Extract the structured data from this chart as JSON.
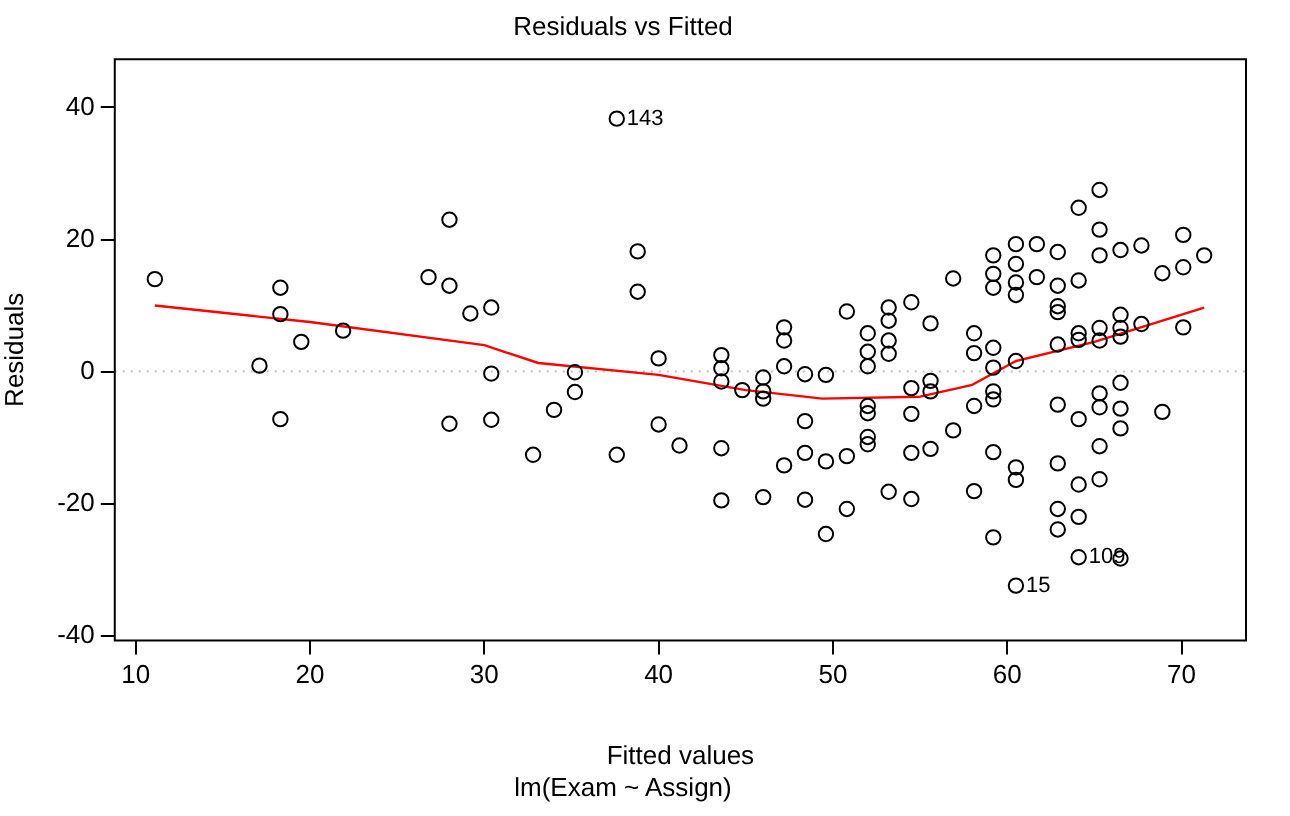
{
  "chart_data": {
    "type": "scatter",
    "title": "Residuals vs Fitted",
    "subtitle": "lm(Exam ~ Assign)",
    "xlabel": "Fitted values",
    "ylabel": "Residuals",
    "xlim": [
      8.8,
      73.7
    ],
    "xticks": [
      10,
      20,
      30,
      40,
      50,
      60,
      70
    ],
    "ylim": [
      -40.7,
      47.3
    ],
    "yticks": [
      -40,
      -20,
      0,
      20,
      40
    ],
    "grid": false,
    "legend": false,
    "marker": "circle",
    "series": [
      {
        "color": "#000000",
        "x": [
          11.1,
          17.1,
          18.3,
          18.3,
          18.3,
          19.5,
          21.9,
          26.8,
          28.0,
          28.0,
          28.0,
          29.2,
          30.4,
          30.4,
          30.4,
          32.8,
          34.0,
          35.2,
          35.2,
          37.6,
          37.6,
          38.8,
          38.8,
          40.0,
          40.0,
          41.2,
          43.6,
          43.6,
          43.6,
          43.6,
          43.6,
          44.8,
          46.0,
          46.0,
          46.0,
          46.0,
          47.2,
          47.2,
          47.2,
          47.2,
          48.4,
          48.4,
          48.4,
          48.4,
          49.6,
          49.6,
          49.6,
          50.8,
          50.8,
          50.8,
          52.0,
          52.0,
          52.0,
          52.0,
          52.0,
          52.0,
          52.0,
          53.2,
          53.2,
          53.2,
          53.2,
          53.2,
          54.5,
          54.5,
          54.5,
          54.5,
          54.5,
          55.6,
          55.6,
          55.6,
          55.6,
          56.9,
          56.9,
          58.1,
          58.1,
          58.1,
          58.1,
          59.2,
          59.2,
          59.2,
          59.2,
          59.2,
          59.2,
          59.2,
          59.2,
          59.2,
          60.5,
          60.5,
          60.5,
          60.5,
          60.5,
          60.5,
          60.5,
          60.5,
          61.7,
          61.7,
          62.9,
          62.9,
          62.9,
          62.9,
          62.9,
          62.9,
          62.9,
          62.9,
          62.9,
          64.1,
          64.1,
          64.1,
          64.1,
          64.1,
          64.1,
          64.1,
          64.1,
          65.3,
          65.3,
          65.3,
          65.3,
          65.3,
          65.3,
          65.3,
          65.3,
          65.3,
          66.5,
          66.5,
          66.5,
          66.5,
          66.5,
          66.5,
          66.5,
          66.5,
          67.7,
          67.7,
          68.9,
          68.9,
          70.1,
          70.1,
          70.1,
          71.3
        ],
        "values": [
          14.0,
          0.9,
          12.7,
          8.7,
          -7.2,
          4.5,
          6.2,
          14.3,
          23.0,
          13.0,
          -7.9,
          8.8,
          9.7,
          -0.3,
          -7.3,
          -12.6,
          -5.8,
          -0.1,
          -3.1,
          38.3,
          -12.6,
          18.2,
          12.1,
          2.0,
          -8.0,
          -11.2,
          2.5,
          0.5,
          -1.5,
          -11.6,
          -19.5,
          -2.8,
          -0.9,
          -3.0,
          -4.1,
          -19.0,
          6.7,
          4.7,
          0.8,
          -14.2,
          -0.4,
          -7.5,
          -12.3,
          -19.4,
          -0.5,
          -13.6,
          -24.6,
          9.1,
          -12.8,
          -20.8,
          5.8,
          3.0,
          0.8,
          -5.2,
          -6.3,
          -9.9,
          -11.0,
          9.7,
          7.7,
          4.7,
          2.7,
          -18.2,
          10.5,
          -2.5,
          -6.4,
          -12.3,
          -19.3,
          7.3,
          -1.4,
          -3.0,
          -11.7,
          14.1,
          -8.9,
          5.8,
          2.8,
          -5.2,
          -18.1,
          17.6,
          14.8,
          12.7,
          3.6,
          0.6,
          -3.0,
          -4.2,
          -12.2,
          -25.1,
          19.3,
          16.3,
          13.5,
          11.6,
          1.6,
          -14.5,
          -16.4,
          -32.4,
          19.3,
          14.3,
          18.1,
          13.0,
          9.9,
          9.0,
          4.1,
          -5.0,
          -13.9,
          -20.8,
          -23.9,
          24.8,
          13.8,
          5.8,
          4.8,
          -7.2,
          -17.1,
          -22.0,
          -28.1,
          27.5,
          21.5,
          17.6,
          6.6,
          4.7,
          -3.3,
          -5.4,
          -11.3,
          -16.3,
          18.4,
          8.6,
          6.6,
          5.3,
          -1.7,
          -5.6,
          -8.6,
          -28.3,
          19.1,
          7.2,
          14.9,
          -6.1,
          20.7,
          15.8,
          6.7,
          17.6
        ]
      },
      {
        "type": "line",
        "color": "#ff0000",
        "marker": "none",
        "x": [
          11.1,
          20,
          30,
          33.1,
          40,
          45,
          49.4,
          55,
          58,
          60.5,
          65,
          71.3
        ],
        "values": [
          10.0,
          7.5,
          4.0,
          1.3,
          -0.5,
          -2.8,
          -4.1,
          -3.8,
          -2.0,
          1.6,
          4.5,
          9.7
        ]
      }
    ],
    "ref_lines": [
      {
        "axis": "y",
        "value": 0,
        "color": "#bebebe",
        "line_style": "dotted"
      }
    ],
    "annotations": [
      {
        "text": "143",
        "x": 37.6,
        "y": 38.3
      },
      {
        "text": "15",
        "x": 60.5,
        "y": -32.4
      },
      {
        "text": "109",
        "x": 64.1,
        "y": -28.1
      }
    ]
  }
}
